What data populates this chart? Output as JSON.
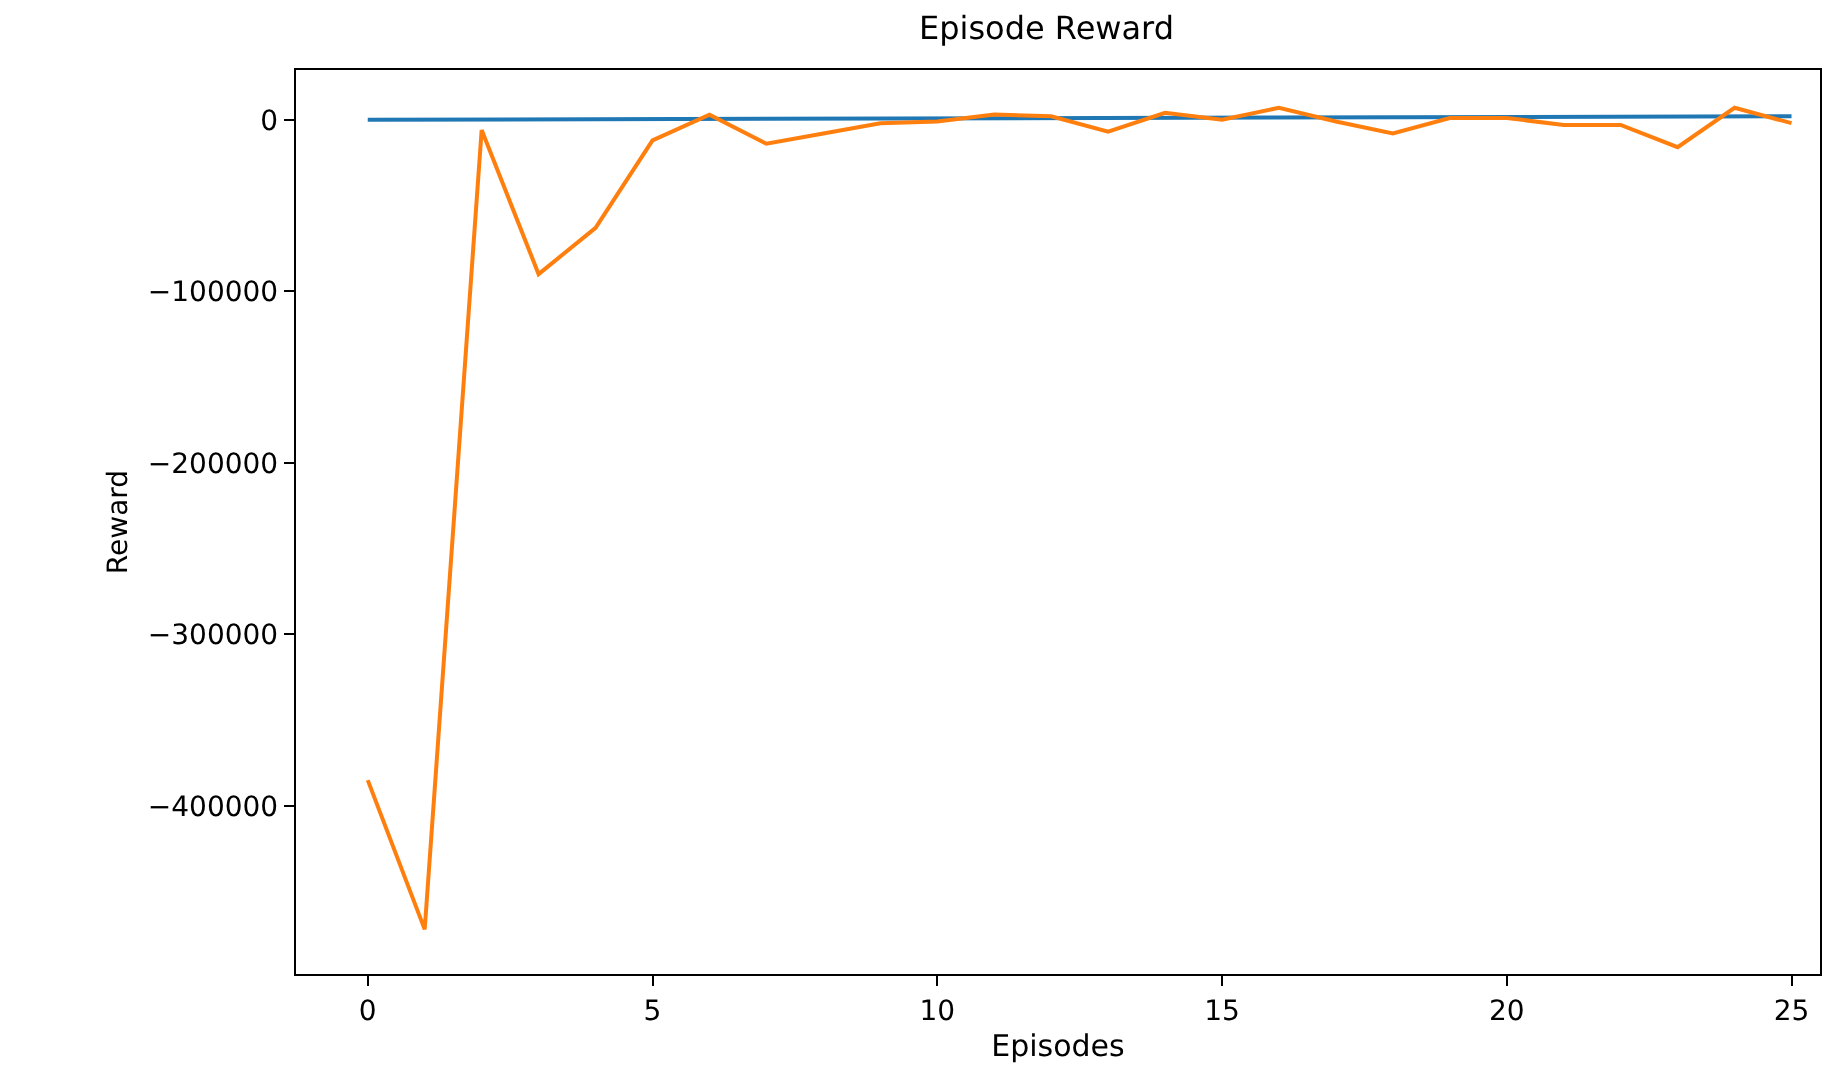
{
  "chart_data": {
    "type": "line",
    "title": "Episode Reward",
    "xlabel": "Episodes",
    "ylabel": "Reward",
    "x": [
      0,
      1,
      2,
      3,
      4,
      5,
      6,
      7,
      8,
      9,
      10,
      11,
      12,
      13,
      14,
      15,
      16,
      17,
      18,
      19,
      20,
      21,
      22,
      23,
      24,
      25
    ],
    "series": [
      {
        "color": "#1f77b4",
        "x": [
          0,
          25
        ],
        "values": [
          0,
          2000
        ]
      },
      {
        "color": "#ff7f0e",
        "values": [
          -385000,
          -472000,
          -6000,
          -90000,
          -63000,
          -12000,
          3000,
          -14000,
          -8000,
          -2000,
          -1000,
          3000,
          2000,
          -7000,
          4000,
          0,
          7000,
          -1000,
          -8000,
          1000,
          1000,
          -3000,
          -3000,
          -16000,
          7000,
          -2000
        ]
      }
    ],
    "xlim": [
      -1.26,
      25.5
    ],
    "ylim": [
      -498000,
      29000
    ],
    "xticks": [
      0,
      5,
      10,
      15,
      20,
      25
    ],
    "yticks": [
      {
        "value": -400000,
        "label": "−400000"
      },
      {
        "value": -300000,
        "label": "−300000"
      },
      {
        "value": -200000,
        "label": "−200000"
      },
      {
        "value": -100000,
        "label": "−100000"
      },
      0
    ],
    "marker": "none",
    "line_style": "solid"
  }
}
